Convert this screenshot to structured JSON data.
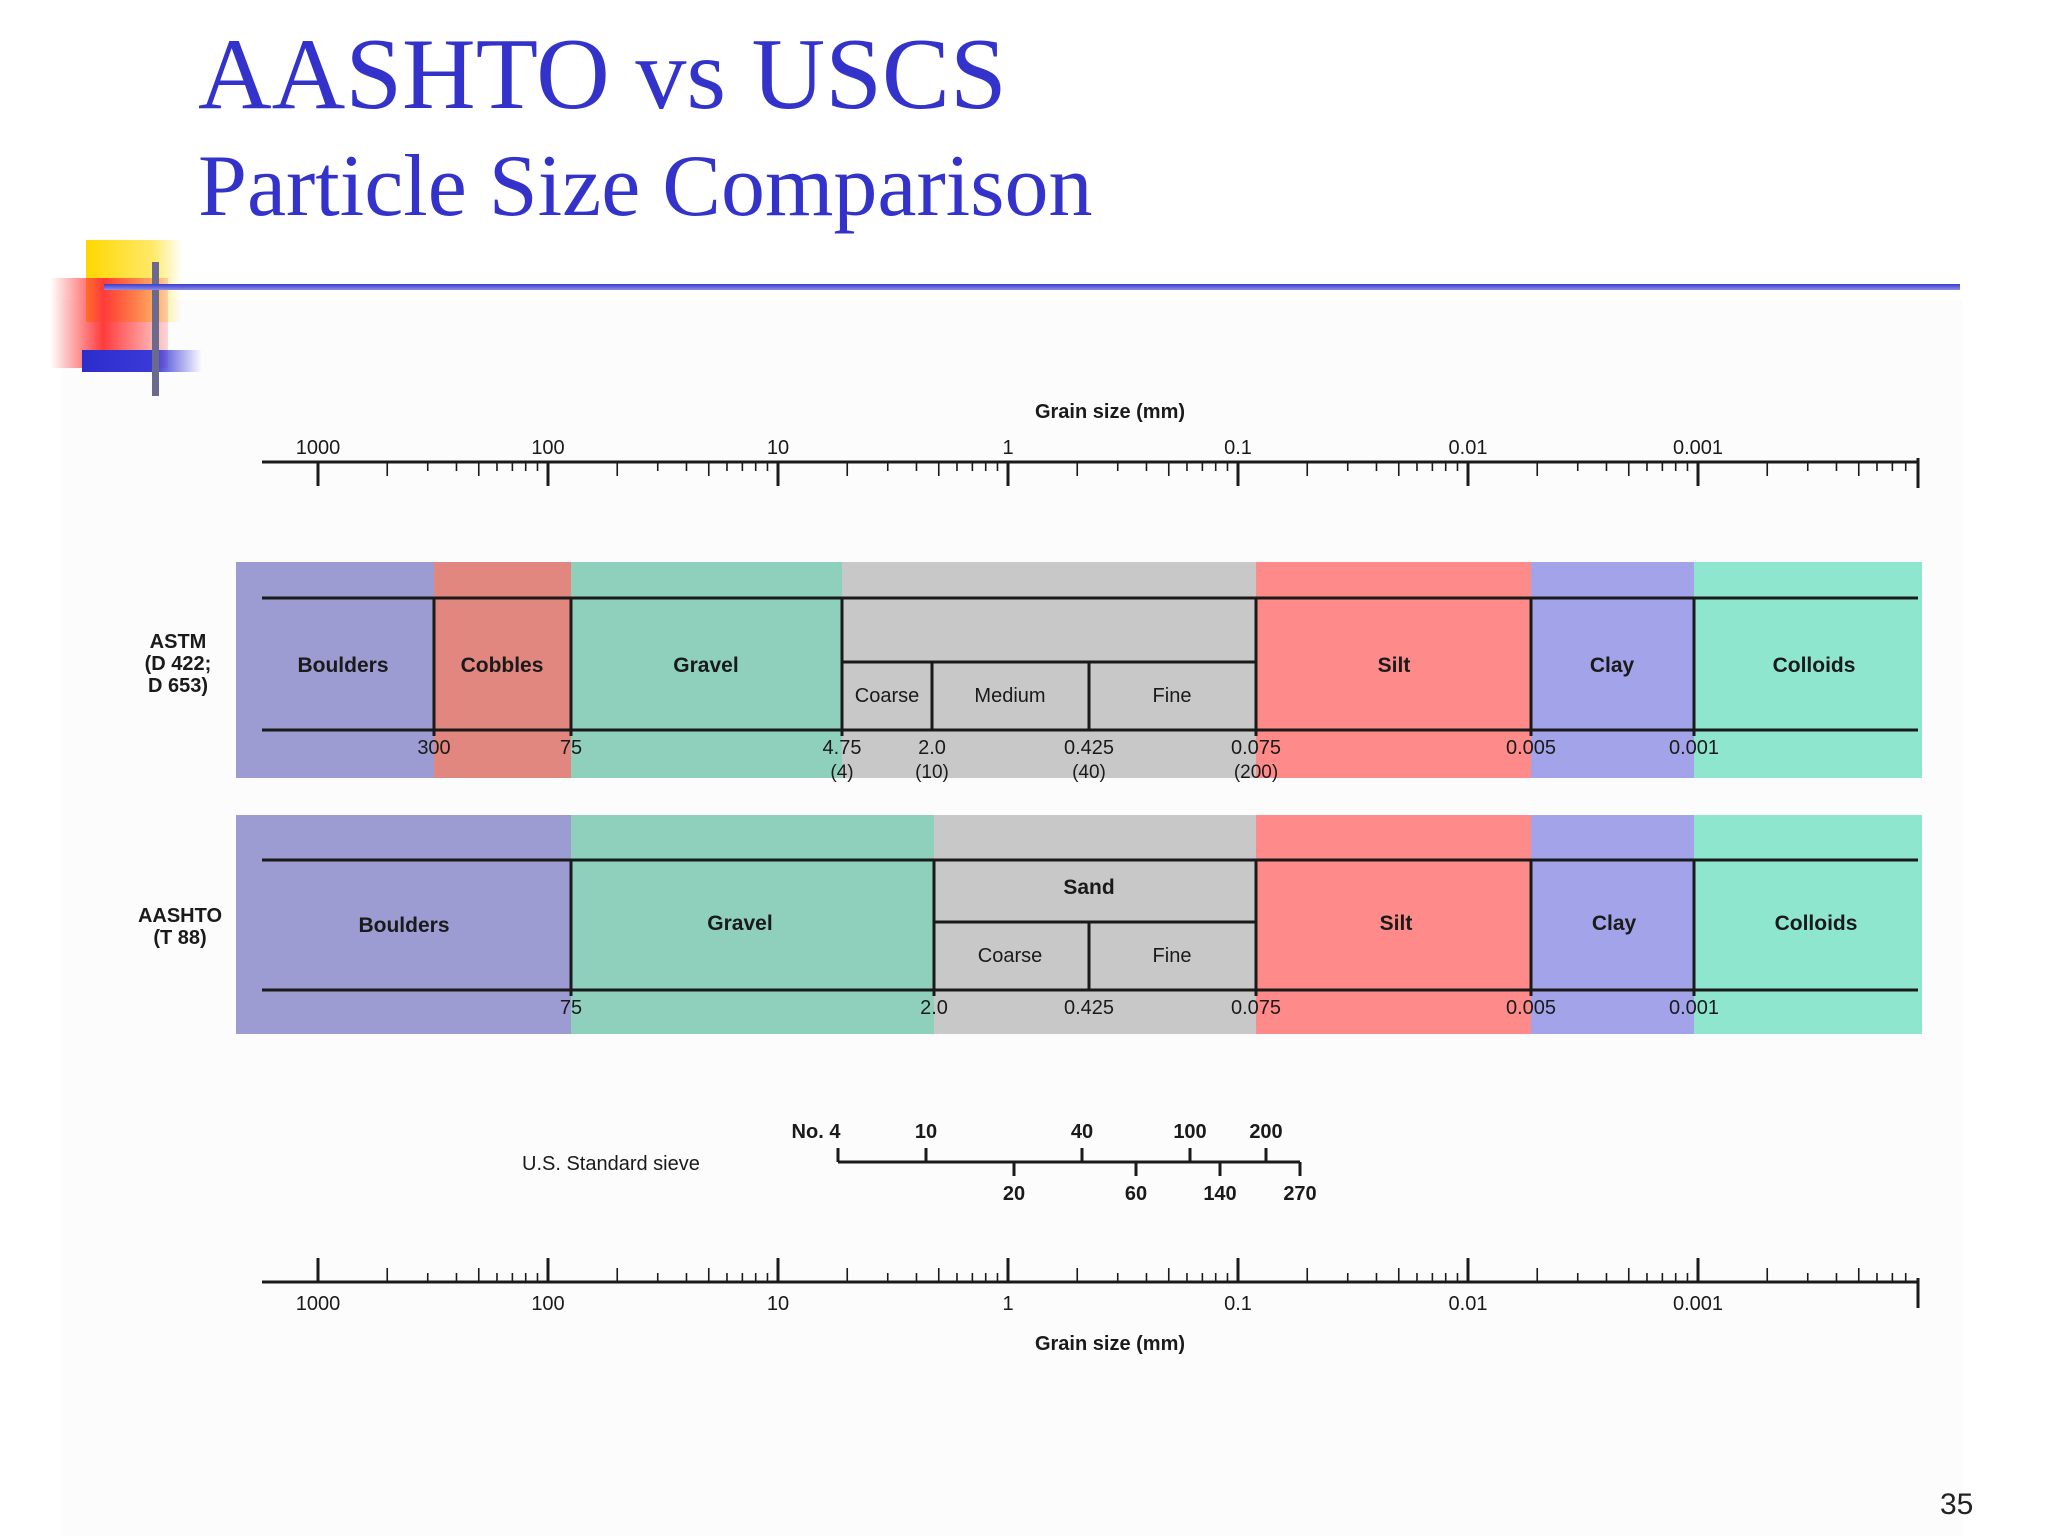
{
  "slide": {
    "title": "AASHTO vs USCS",
    "subtitle": "Particle Size Comparison",
    "page_number": "35"
  },
  "top_axis": {
    "label": "Grain size (mm)",
    "ticks": [
      "1000",
      "100",
      "10",
      "1",
      "0.1",
      "0.01",
      "0.001"
    ]
  },
  "astm": {
    "row_label": [
      "ASTM",
      "(D 422;",
      "D 653)"
    ],
    "bands": [
      {
        "name": "Boulders",
        "color": "#9c9cd2"
      },
      {
        "name": "Cobbles",
        "color": "#e2877f"
      },
      {
        "name": "Gravel",
        "color": "#8ed0bc"
      },
      {
        "name": "",
        "color": "#c8c8c8"
      },
      {
        "name": "Silt",
        "color": "#ff8a8a"
      },
      {
        "name": "Clay",
        "color": "#a3a3ea"
      },
      {
        "name": "Colloids",
        "color": "#8ee6cf"
      }
    ],
    "sand_subdivisions": [
      "Coarse",
      "Medium",
      "Fine"
    ],
    "boundaries": [
      "300",
      "75",
      "4.75",
      "2.0",
      "0.425",
      "0.075",
      "0.005",
      "0.001"
    ],
    "sieves": [
      "(4)",
      "(10)",
      "(40)",
      "(200)"
    ]
  },
  "aashto": {
    "row_label": [
      "AASHTO",
      "(T 88)"
    ],
    "bands": [
      {
        "name": "Boulders",
        "color": "#9c9cd2"
      },
      {
        "name": "Gravel",
        "color": "#8ed0bc"
      },
      {
        "name": "Sand",
        "color": "#c8c8c8"
      },
      {
        "name": "Silt",
        "color": "#ff8a8a"
      },
      {
        "name": "Clay",
        "color": "#a3a3ea"
      },
      {
        "name": "Colloids",
        "color": "#8ee6cf"
      }
    ],
    "sand_subdivisions": [
      "Coarse",
      "Fine"
    ],
    "boundaries": [
      "75",
      "2.0",
      "0.425",
      "0.075",
      "0.005",
      "0.001"
    ]
  },
  "sieve_scale": {
    "label": "U.S. Standard sieve",
    "no_label": "No. 4",
    "top_numbers": [
      "10",
      "40",
      "100",
      "200"
    ],
    "bottom_numbers": [
      "20",
      "60",
      "140",
      "270"
    ]
  },
  "bottom_axis": {
    "label": "Grain size (mm)",
    "ticks": [
      "1000",
      "100",
      "10",
      "1",
      "0.1",
      "0.01",
      "0.001"
    ]
  },
  "colors": {
    "title": "#3333cc",
    "line": "#1a1a1a"
  }
}
